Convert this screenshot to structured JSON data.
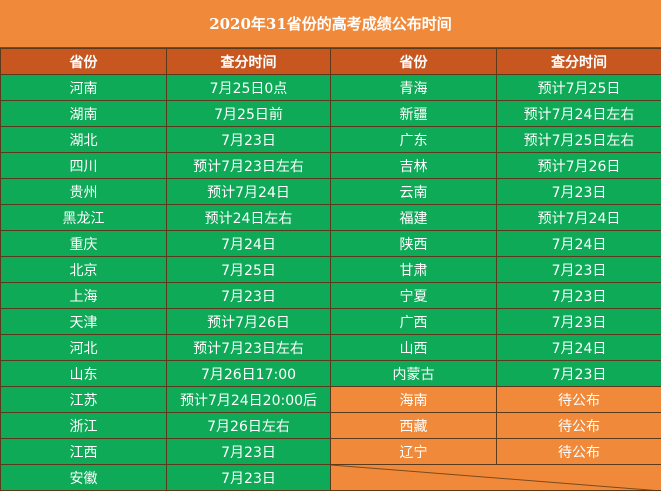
{
  "title": "2020年31省份的高考成绩公布时间",
  "headers": [
    "省份",
    "查分时间",
    "省份",
    "查分时间"
  ],
  "left": [
    {
      "province": "河南",
      "time": "7月25日0点"
    },
    {
      "province": "湖南",
      "time": "7月25日前"
    },
    {
      "province": "湖北",
      "time": "7月23日"
    },
    {
      "province": "四川",
      "time": "预计7月23日左右"
    },
    {
      "province": "贵州",
      "time": "预计7月24日"
    },
    {
      "province": "黑龙江",
      "time": "预计24日左右"
    },
    {
      "province": "重庆",
      "time": "7月24日"
    },
    {
      "province": "北京",
      "time": "7月25日"
    },
    {
      "province": "上海",
      "time": "7月23日"
    },
    {
      "province": "天津",
      "time": "预计7月26日"
    },
    {
      "province": "河北",
      "time": "预计7月23日左右"
    },
    {
      "province": "山东",
      "time": "7月26日17:00"
    },
    {
      "province": "江苏",
      "time": "预计7月24日20:00后"
    },
    {
      "province": "浙江",
      "time": "7月26日左右"
    },
    {
      "province": "江西",
      "time": "7月23日"
    },
    {
      "province": "安徽",
      "time": "7月23日"
    }
  ],
  "right": [
    {
      "province": "青海",
      "time": "预计7月25日",
      "pending": false
    },
    {
      "province": "新疆",
      "time": "预计7月24日左右",
      "pending": false
    },
    {
      "province": "广东",
      "time": "预计7月25日左右",
      "pending": false
    },
    {
      "province": "吉林",
      "time": "预计7月26日",
      "pending": false
    },
    {
      "province": "云南",
      "time": "7月23日",
      "pending": false
    },
    {
      "province": "福建",
      "time": "预计7月24日",
      "pending": false
    },
    {
      "province": "陕西",
      "time": "7月24日",
      "pending": false
    },
    {
      "province": "甘肃",
      "time": "7月23日",
      "pending": false
    },
    {
      "province": "宁夏",
      "time": "7月23日",
      "pending": false
    },
    {
      "province": "广西",
      "time": "7月23日",
      "pending": false
    },
    {
      "province": "山西",
      "time": "7月24日",
      "pending": false
    },
    {
      "province": "内蒙古",
      "time": "7月23日",
      "pending": false
    },
    {
      "province": "海南",
      "time": "待公布",
      "pending": true
    },
    {
      "province": "西藏",
      "time": "待公布",
      "pending": true
    },
    {
      "province": "辽宁",
      "time": "待公布",
      "pending": true
    }
  ],
  "colors": {
    "title_bg": "#F08A3A",
    "header_bg": "#C8561F",
    "cell_green": "#0EAA58",
    "pending_bg": "#F08A3A"
  }
}
